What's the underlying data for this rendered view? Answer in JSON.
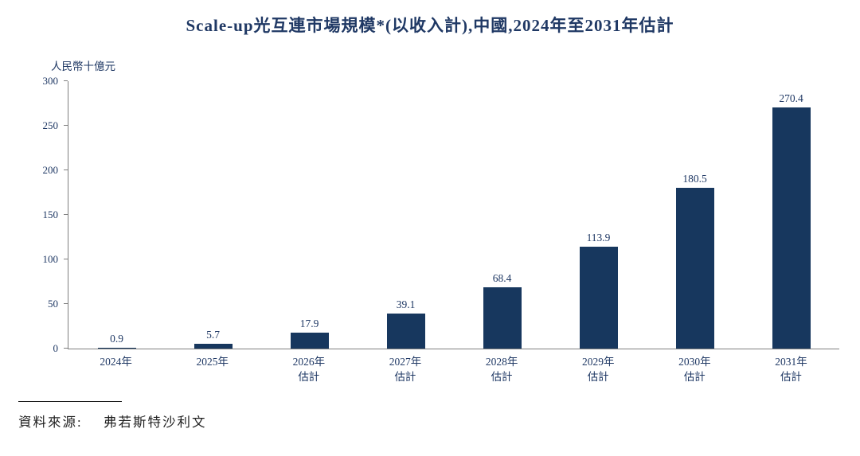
{
  "chart_data": {
    "type": "bar",
    "title": "Scale-up光互連市場規模*(以收入計),中國,2024年至2031年估計",
    "unit_label": "人民幣十億元",
    "ylabel": "人民幣十億元",
    "xlabel": "",
    "categories": [
      "2024年",
      "2025年",
      "2026年\n估計",
      "2027年\n估計",
      "2028年\n估計",
      "2029年\n估計",
      "2030年\n估計",
      "2031年\n估計"
    ],
    "values": [
      0.9,
      5.7,
      17.9,
      39.1,
      68.4,
      113.9,
      180.5,
      270.4
    ],
    "value_labels": [
      "0.9",
      "5.7",
      "17.9",
      "39.1",
      "68.4",
      "113.9",
      "180.5",
      "270.4"
    ],
    "y_ticks": [
      0,
      50,
      100,
      150,
      200,
      250,
      300
    ],
    "ylim": [
      0,
      300
    ],
    "grid": false,
    "legend": false,
    "bar_color": "#17375e",
    "text_color": "#1f3864"
  },
  "source": {
    "label": "資料來源:",
    "value": "弗若斯特沙利文"
  }
}
